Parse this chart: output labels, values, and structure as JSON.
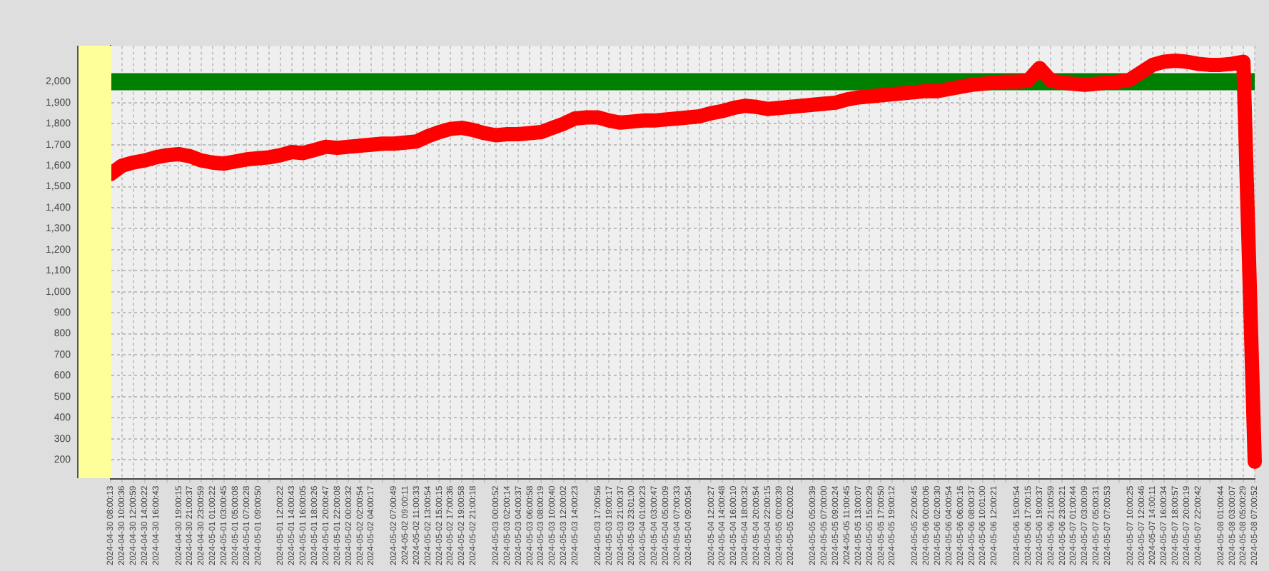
{
  "chart_data": {
    "type": "line",
    "categories": [
      "2024-04-30 08:00:13",
      "2024-04-30 10:00:36",
      "2024-04-30 12:00:59",
      "2024-04-30 14:00:22",
      "2024-04-30 16:00:43",
      null,
      "2024-04-30 19:00:15",
      "2024-04-30 21:00:37",
      "2024-04-30 23:00:59",
      "2024-05-01 01:00:22",
      "2024-05-01 03:00:45",
      "2024-05-01 05:00:08",
      "2024-05-01 07:00:28",
      "2024-05-01 09:00:50",
      null,
      "2024-05-01 12:00:22",
      "2024-05-01 14:00:43",
      "2024-05-01 16:00:05",
      "2024-05-01 18:00:26",
      "2024-05-01 20:00:47",
      "2024-05-01 22:00:08",
      "2024-05-02 00:00:32",
      "2024-05-02 02:00:54",
      "2024-05-02 04:00:17",
      null,
      "2024-05-02 07:00:49",
      "2024-05-02 09:00:11",
      "2024-05-02 11:00:33",
      "2024-05-02 13:00:54",
      "2024-05-02 15:00:15",
      "2024-05-02 17:00:36",
      "2024-05-02 19:00:58",
      "2024-05-02 21:00:18",
      null,
      "2024-05-03 00:00:52",
      "2024-05-03 02:00:14",
      "2024-05-03 04:00:37",
      "2024-05-03 06:00:58",
      "2024-05-03 08:00:19",
      "2024-05-03 10:00:40",
      "2024-05-03 12:00:02",
      "2024-05-03 14:00:23",
      null,
      "2024-05-03 17:00:56",
      "2024-05-03 19:00:17",
      "2024-05-03 21:00:37",
      "2024-05-03 23:01:00",
      "2024-05-04 01:00:23",
      "2024-05-04 03:00:47",
      "2024-05-04 05:00:09",
      "2024-05-04 07:00:33",
      "2024-05-04 09:00:54",
      null,
      "2024-05-04 12:00:27",
      "2024-05-04 14:00:48",
      "2024-05-04 16:00:10",
      "2024-05-04 18:00:32",
      "2024-05-04 20:00:54",
      "2024-05-04 22:00:15",
      "2024-05-05 00:00:39",
      "2024-05-05 02:00:02",
      null,
      "2024-05-05 05:00:39",
      "2024-05-05 07:00:00",
      "2024-05-05 09:00:24",
      "2024-05-05 11:00:45",
      "2024-05-05 13:00:07",
      "2024-05-05 15:00:29",
      "2024-05-05 17:00:50",
      "2024-05-05 19:00:12",
      null,
      "2024-05-05 22:00:45",
      "2024-05-06 00:00:06",
      "2024-05-06 02:00:30",
      "2024-05-06 04:00:54",
      "2024-05-06 06:00:16",
      "2024-05-06 08:00:37",
      "2024-05-06 10:01:00",
      "2024-05-06 12:00:21",
      null,
      "2024-05-06 15:00:54",
      "2024-05-06 17:00:15",
      "2024-05-06 19:00:37",
      "2024-05-06 21:00:59",
      "2024-05-06 23:00:21",
      "2024-05-07 01:00:44",
      "2024-05-07 03:00:09",
      "2024-05-07 05:00:31",
      "2024-05-07 07:00:53",
      null,
      "2024-05-07 10:00:25",
      "2024-05-07 12:00:46",
      "2024-05-07 14:00:11",
      "2024-05-07 16:00:34",
      "2024-05-07 18:00:57",
      "2024-05-07 20:00:19",
      "2024-05-07 22:00:42",
      null,
      "2024-05-08 01:00:44",
      "2024-05-08 03:00:07",
      "2024-05-08 05:00:29",
      "2024-05-08 07:00:52"
    ],
    "series": [
      {
        "color": "#ff0000",
        "values": [
          1560,
          1600,
          1615,
          1625,
          1640,
          1650,
          1655,
          1645,
          1625,
          1615,
          1610,
          1620,
          1630,
          1635,
          1640,
          1650,
          1665,
          1660,
          1675,
          1690,
          1685,
          1690,
          1695,
          1700,
          1705,
          1705,
          1710,
          1715,
          1740,
          1760,
          1775,
          1780,
          1770,
          1755,
          1745,
          1750,
          1750,
          1755,
          1760,
          1780,
          1800,
          1825,
          1830,
          1830,
          1815,
          1805,
          1810,
          1815,
          1815,
          1820,
          1825,
          1830,
          1835,
          1850,
          1860,
          1875,
          1885,
          1880,
          1870,
          1875,
          1880,
          1885,
          1890,
          1895,
          1900,
          1915,
          1925,
          1930,
          1935,
          1940,
          1945,
          1950,
          1955,
          1955,
          1965,
          1975,
          1985,
          1990,
          1995,
          2000,
          2000,
          2005,
          2065,
          2005,
          1995,
          1990,
          1985,
          1990,
          1995,
          2000,
          2010,
          2045,
          2080,
          2095,
          2100,
          2095,
          2085,
          2080,
          2080,
          2085,
          2095,
          190
        ]
      }
    ],
    "ylim": [
      110,
      2170
    ],
    "yticks": [
      200,
      300,
      400,
      500,
      600,
      700,
      800,
      900,
      {
        "value": 1000,
        "label": "1,000"
      },
      {
        "value": 1100,
        "label": "1,100"
      },
      {
        "value": 1200,
        "label": "1,200"
      },
      {
        "value": 1300,
        "label": "1,300"
      },
      {
        "value": 1400,
        "label": "1,400"
      },
      {
        "value": 1500,
        "label": "1,500"
      },
      {
        "value": 1600,
        "label": "1,600"
      },
      {
        "value": 1700,
        "label": "1,700"
      },
      {
        "value": 1800,
        "label": "1,800"
      },
      {
        "value": 1900,
        "label": "1,900"
      },
      {
        "value": 2000,
        "label": "2,000"
      }
    ],
    "ref_lines": [
      {
        "axis": "y",
        "value": 2000,
        "color": "#008000"
      }
    ],
    "grid": true
  }
}
